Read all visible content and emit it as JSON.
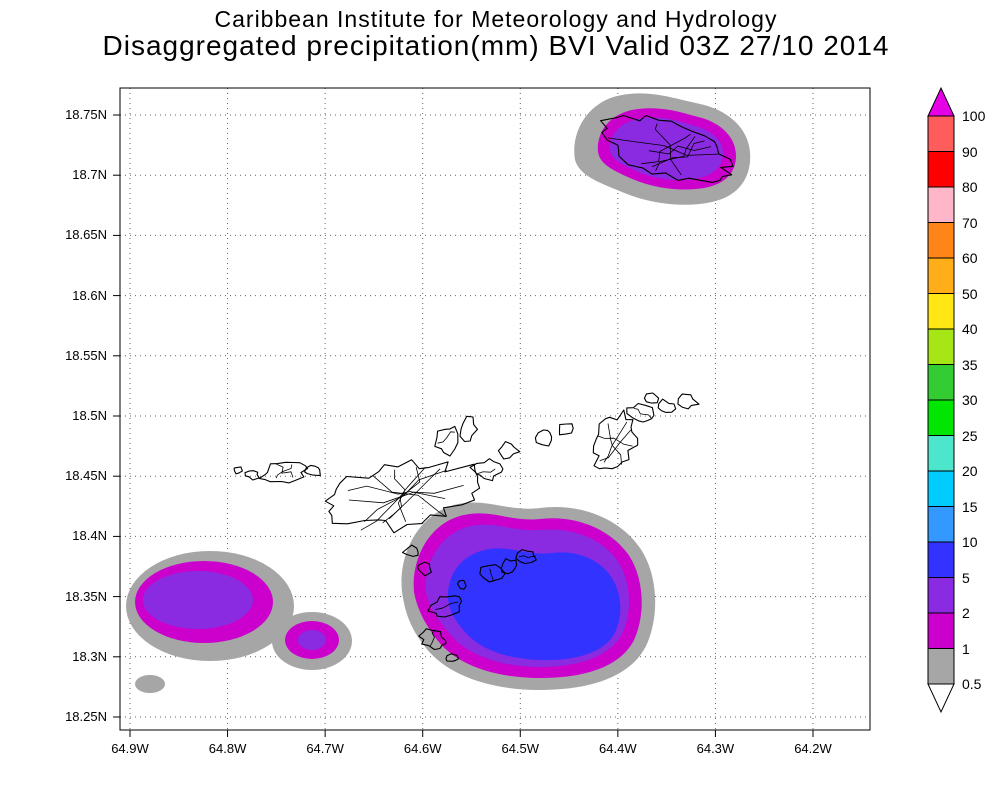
{
  "header": {
    "title_line1": "Caribbean Institute for Meteorology and Hydrology",
    "title_line2": "Disaggregated precipitation(mm) BVI Valid 03Z 27/10 2014"
  },
  "map": {
    "lat_ticks": [
      "18.75N",
      "18.7N",
      "18.65N",
      "18.6N",
      "18.55N",
      "18.5N",
      "18.45N",
      "18.4N",
      "18.35N",
      "18.3N",
      "18.25N"
    ],
    "lon_ticks": [
      "64.9W",
      "64.8W",
      "64.7W",
      "64.6W",
      "64.5W",
      "64.4W",
      "64.3W",
      "64.2W"
    ]
  },
  "palette": {
    "rain_0p5_to_1": "#a6a6a6",
    "rain_1_to_2": "#cc00cc",
    "rain_2_to_5": "#8a2be2",
    "rain_5_to_10": "#3333ff",
    "island_outline": "#000000",
    "grid": "#606060"
  },
  "colorbar": {
    "labels": [
      "100",
      "90",
      "80",
      "70",
      "60",
      "50",
      "40",
      "35",
      "30",
      "25",
      "20",
      "15",
      "10",
      "5",
      "2",
      "1",
      "0.5"
    ],
    "segment_colors_top_to_bottom": [
      "#ff5c5c",
      "#ff0000",
      "#ffb6c8",
      "#ff8519",
      "#ffae19",
      "#ffe614",
      "#a6e614",
      "#33cc33",
      "#00e600",
      "#4de6cc",
      "#00ccff",
      "#3399ff",
      "#3333ff",
      "#8a2be2",
      "#cc00cc",
      "#a6a6a6"
    ],
    "above_max_color": "#e600e6",
    "below_min_color": "#ffffff"
  },
  "chart_data": {
    "type": "heatmap",
    "subtype": "filled contour precipitation map",
    "institution": "Caribbean Institute for Meteorology and Hydrology",
    "title": "Disaggregated precipitation(mm) BVI Valid 03Z 27/10 2014",
    "region": "BVI",
    "valid_time": "03Z 27/10 2014",
    "units": "mm",
    "x_axis": {
      "ticks": [
        "64.9W",
        "64.8W",
        "64.7W",
        "64.6W",
        "64.5W",
        "64.4W",
        "64.3W",
        "64.2W"
      ],
      "approx_range_deg_w": [
        64.92,
        64.13
      ]
    },
    "y_axis": {
      "ticks": [
        "18.75N",
        "18.7N",
        "18.65N",
        "18.6N",
        "18.55N",
        "18.5N",
        "18.45N",
        "18.4N",
        "18.35N",
        "18.3N",
        "18.25N"
      ],
      "approx_range_deg_n": [
        18.24,
        18.77
      ]
    },
    "contour_levels_mm": [
      0.5,
      1,
      2,
      5,
      10,
      15,
      20,
      25,
      30,
      35,
      40,
      50,
      60,
      70,
      80,
      90,
      100
    ],
    "gridlines": "dotted",
    "legend_position": "right",
    "precipitation_cells": [
      {
        "id": "northeast-island-cell",
        "center_lat_n": 18.72,
        "center_lon_w": 64.33,
        "peak_band_mm": "2-5",
        "bands_present_mm": [
          "0.5-1",
          "1-2",
          "2-5"
        ]
      },
      {
        "id": "west-cell-main",
        "center_lat_n": 18.35,
        "center_lon_w": 64.82,
        "peak_band_mm": "2-5",
        "bands_present_mm": [
          "0.5-1",
          "1-2",
          "2-5"
        ]
      },
      {
        "id": "west-cell-secondary-lobe",
        "center_lat_n": 18.32,
        "center_lon_w": 64.71,
        "peak_band_mm": "2-5",
        "bands_present_mm": [
          "0.5-1",
          "1-2",
          "2-5"
        ]
      },
      {
        "id": "small-southwest-spot",
        "center_lat_n": 18.28,
        "center_lon_w": 64.88,
        "peak_band_mm": "0.5-1",
        "bands_present_mm": [
          "0.5-1"
        ]
      },
      {
        "id": "main-south-central-cell",
        "center_lat_n": 18.34,
        "center_lon_w": 64.49,
        "peak_band_mm": "5-10",
        "bands_present_mm": [
          "0.5-1",
          "1-2",
          "2-5",
          "5-10"
        ]
      }
    ]
  }
}
